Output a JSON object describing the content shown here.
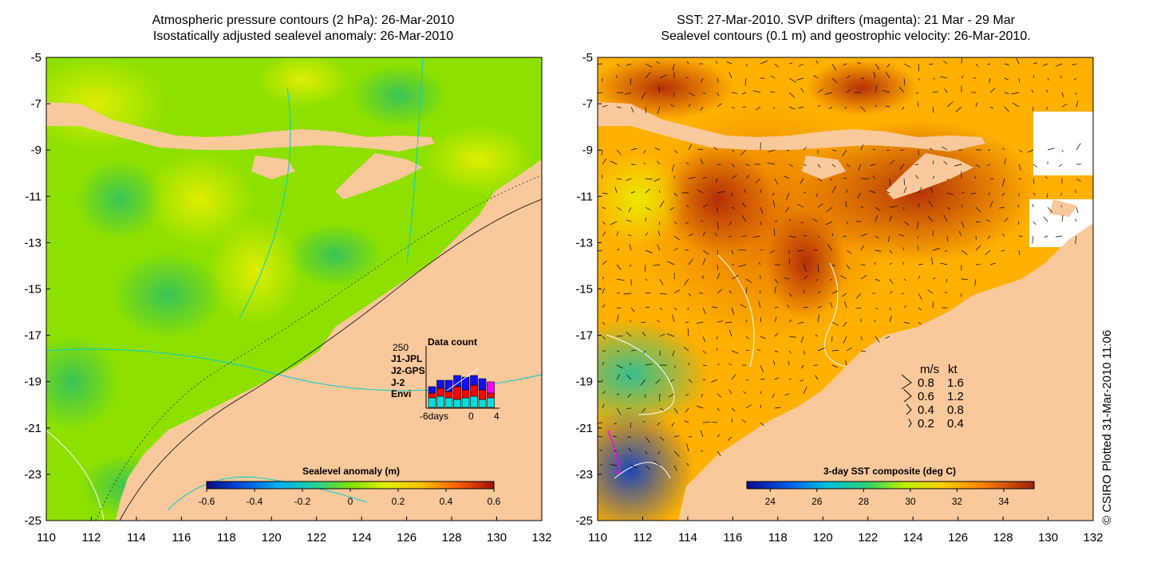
{
  "left_panel": {
    "title_line1": "Atmospheric pressure contours (2 hPa): 26-Mar-2010",
    "title_line2": "Isostatically adjusted sealevel anomaly: 26-Mar-2010",
    "y_ticks": [
      "-5",
      "-7",
      "-9",
      "-11",
      "-13",
      "-15",
      "-17",
      "-19",
      "-21",
      "-23",
      "-25"
    ],
    "x_ticks": [
      "110",
      "112",
      "114",
      "116",
      "118",
      "120",
      "122",
      "124",
      "126",
      "128",
      "130",
      "132"
    ],
    "colorbar": {
      "label": "Sealevel anomaly (m)",
      "ticks": [
        "-0.6",
        "-0.4",
        "-0.2",
        "0",
        "0.2",
        "0.4",
        "0.6"
      ],
      "range": [
        -0.6,
        0.6
      ]
    },
    "inset": {
      "title": "Data count",
      "max_label": "250",
      "missions": [
        {
          "name": "J1-JPL",
          "color": "#1010ff"
        },
        {
          "name": "J2-GPS",
          "color": "#ff00ff"
        },
        {
          "name": "J-2",
          "color": "#ff0000"
        },
        {
          "name": "Envi",
          "color": "#00e0e0"
        }
      ],
      "x_labels": [
        "-6days",
        "0",
        "4"
      ]
    }
  },
  "right_panel": {
    "title_line1": "SST: 27-Mar-2010. SVP drifters (magenta): 21 Mar - 29 Mar",
    "title_line2": "Sealevel contours (0.1 m) and geostrophic velocity: 26-Mar-2010.",
    "y_ticks": [
      "-5",
      "-7",
      "-9",
      "-11",
      "-13",
      "-15",
      "-17",
      "-19",
      "-21",
      "-23",
      "-25"
    ],
    "x_ticks": [
      "110",
      "112",
      "114",
      "116",
      "118",
      "120",
      "122",
      "124",
      "126",
      "128",
      "130",
      "132"
    ],
    "colorbar": {
      "label": "3-day SST composite (deg C)",
      "ticks": [
        "24",
        "26",
        "28",
        "30",
        "32",
        "34"
      ],
      "range": [
        23,
        35.3
      ]
    },
    "velocity_legend": {
      "header_ms": "m/s",
      "header_kt": "kt",
      "rows": [
        {
          "ms": "0.8",
          "kt": "1.6"
        },
        {
          "ms": "0.6",
          "kt": "1.2"
        },
        {
          "ms": "0.4",
          "kt": "0.8"
        },
        {
          "ms": "0.2",
          "kt": "0.4"
        }
      ]
    }
  },
  "credit": "© CSIRO Plotted 31-Mar-2010 11:06",
  "colors": {
    "land": "#f9c89b",
    "ocean_mid": "#8ee000",
    "ocean_warm": "#ffd000",
    "sst_hot": "#a8360a",
    "sst_cold": "#1a40c0"
  }
}
